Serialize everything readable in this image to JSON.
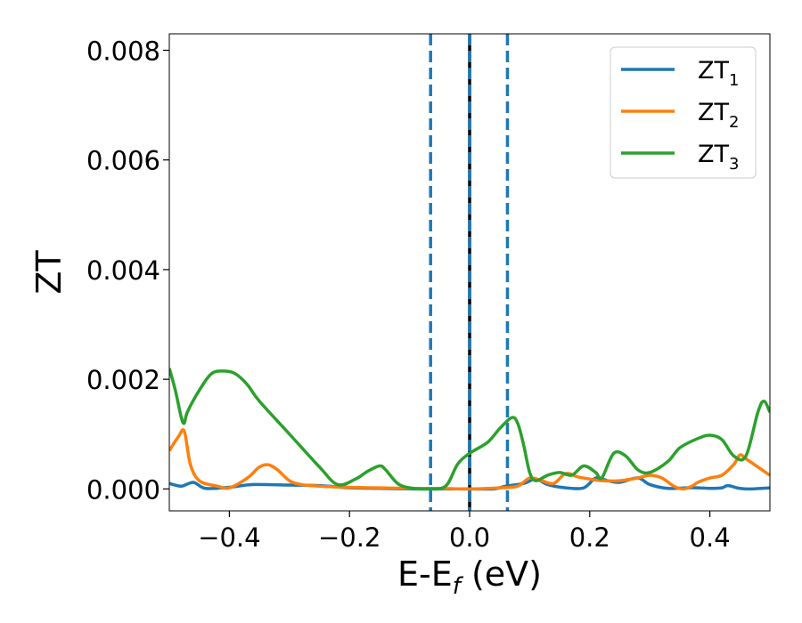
{
  "chart_data": {
    "type": "line",
    "xlabel": "E-E",
    "xlabel_sub": "f",
    "xlabel_unit": " (eV)",
    "ylabel": "ZT",
    "xlim": [
      -0.5,
      0.5
    ],
    "ylim": [
      -0.0004,
      0.0083
    ],
    "xticks": [
      -0.4,
      -0.2,
      0.0,
      0.2,
      0.4
    ],
    "xtick_labels": [
      "−0.4",
      "−0.2",
      "0.0",
      "0.2",
      "0.4"
    ],
    "yticks": [
      0.0,
      0.002,
      0.004,
      0.006,
      0.008
    ],
    "ytick_labels": [
      "0.000",
      "0.002",
      "0.004",
      "0.006",
      "0.008"
    ],
    "legend_position": "top-right",
    "vlines": [
      {
        "x": -0.065,
        "style": "dashed",
        "color": "#1f77b4"
      },
      {
        "x": 0.0,
        "style": "solid",
        "color": "#000000"
      },
      {
        "x": 0.0,
        "style": "dashed",
        "color": "#1f77b4"
      },
      {
        "x": 0.063,
        "style": "dashed",
        "color": "#1f77b4"
      }
    ],
    "series": [
      {
        "name": "ZT",
        "sub": "1",
        "color": "#1f77b4",
        "points": [
          [
            -0.5,
            0.0001
          ],
          [
            -0.48,
            5e-05
          ],
          [
            -0.46,
            0.00012
          ],
          [
            -0.44,
            1e-05
          ],
          [
            -0.4,
            3e-05
          ],
          [
            -0.36,
            8e-05
          ],
          [
            -0.3,
            7e-05
          ],
          [
            -0.25,
            6e-05
          ],
          [
            -0.2,
            2e-05
          ],
          [
            -0.15,
            1e-05
          ],
          [
            -0.1,
            0.0
          ],
          [
            -0.05,
            0.0
          ],
          [
            0.0,
            0.0
          ],
          [
            0.04,
            0.0
          ],
          [
            0.06,
            5e-05
          ],
          [
            0.09,
            0.0001
          ],
          [
            0.11,
            0.00018
          ],
          [
            0.13,
            8e-05
          ],
          [
            0.16,
            2e-05
          ],
          [
            0.19,
            2e-05
          ],
          [
            0.21,
            0.0002
          ],
          [
            0.23,
            0.00015
          ],
          [
            0.25,
            0.00012
          ],
          [
            0.28,
            0.0002
          ],
          [
            0.3,
            8e-05
          ],
          [
            0.33,
            1e-05
          ],
          [
            0.36,
            2e-05
          ],
          [
            0.38,
            2e-05
          ],
          [
            0.4,
            1e-05
          ],
          [
            0.42,
            2e-05
          ],
          [
            0.43,
            6e-05
          ],
          [
            0.45,
            1e-05
          ],
          [
            0.47,
            0.0
          ],
          [
            0.5,
            2e-05
          ]
        ]
      },
      {
        "name": "ZT",
        "sub": "2",
        "color": "#ff7f0e",
        "points": [
          [
            -0.5,
            0.0007
          ],
          [
            -0.485,
            0.00095
          ],
          [
            -0.475,
            0.00105
          ],
          [
            -0.465,
            0.00045
          ],
          [
            -0.45,
            0.00015
          ],
          [
            -0.42,
            5e-05
          ],
          [
            -0.4,
            2e-05
          ],
          [
            -0.37,
            0.0002
          ],
          [
            -0.35,
            0.0004
          ],
          [
            -0.335,
            0.00044
          ],
          [
            -0.32,
            0.00035
          ],
          [
            -0.3,
            0.00015
          ],
          [
            -0.28,
            8e-05
          ],
          [
            -0.25,
            5e-05
          ],
          [
            -0.2,
            3e-05
          ],
          [
            -0.15,
            2e-05
          ],
          [
            -0.1,
            1e-05
          ],
          [
            -0.05,
            1e-05
          ],
          [
            0.0,
            0.0
          ],
          [
            0.05,
            2e-05
          ],
          [
            0.08,
            5e-05
          ],
          [
            0.1,
            0.0002
          ],
          [
            0.12,
            0.00015
          ],
          [
            0.14,
            0.0001
          ],
          [
            0.16,
            0.00028
          ],
          [
            0.18,
            0.00022
          ],
          [
            0.2,
            0.00018
          ],
          [
            0.22,
            0.00015
          ],
          [
            0.25,
            0.00015
          ],
          [
            0.28,
            0.0002
          ],
          [
            0.3,
            0.00025
          ],
          [
            0.32,
            0.0002
          ],
          [
            0.34,
            5e-05
          ],
          [
            0.355,
            0.0
          ],
          [
            0.37,
            5e-05
          ],
          [
            0.38,
            0.00012
          ],
          [
            0.4,
            0.0002
          ],
          [
            0.42,
            0.00025
          ],
          [
            0.44,
            0.00045
          ],
          [
            0.45,
            0.00062
          ],
          [
            0.46,
            0.00055
          ],
          [
            0.48,
            0.0004
          ],
          [
            0.5,
            0.00025
          ]
        ]
      },
      {
        "name": "ZT",
        "sub": "3",
        "color": "#2ca02c",
        "points": [
          [
            -0.5,
            0.0022
          ],
          [
            -0.49,
            0.0018
          ],
          [
            -0.48,
            0.0013
          ],
          [
            -0.475,
            0.0012
          ],
          [
            -0.47,
            0.0014
          ],
          [
            -0.45,
            0.0018
          ],
          [
            -0.43,
            0.0021
          ],
          [
            -0.41,
            0.00215
          ],
          [
            -0.39,
            0.0021
          ],
          [
            -0.37,
            0.0019
          ],
          [
            -0.35,
            0.0016
          ],
          [
            -0.3,
            0.001
          ],
          [
            -0.25,
            0.0004
          ],
          [
            -0.22,
            8e-05
          ],
          [
            -0.19,
            0.00018
          ],
          [
            -0.17,
            0.00032
          ],
          [
            -0.15,
            0.00042
          ],
          [
            -0.14,
            0.00035
          ],
          [
            -0.12,
            0.0001
          ],
          [
            -0.1,
            2e-05
          ],
          [
            -0.07,
            0.0
          ],
          [
            -0.04,
            5e-05
          ],
          [
            -0.02,
            0.00045
          ],
          [
            0.0,
            0.00065
          ],
          [
            0.03,
            0.00085
          ],
          [
            0.05,
            0.0011
          ],
          [
            0.07,
            0.0013
          ],
          [
            0.08,
            0.0012
          ],
          [
            0.09,
            0.0008
          ],
          [
            0.1,
            0.0003
          ],
          [
            0.11,
            0.00015
          ],
          [
            0.13,
            0.00025
          ],
          [
            0.15,
            0.0003
          ],
          [
            0.17,
            0.00025
          ],
          [
            0.19,
            0.00042
          ],
          [
            0.21,
            0.0003
          ],
          [
            0.22,
            0.0002
          ],
          [
            0.24,
            0.00065
          ],
          [
            0.26,
            0.0006
          ],
          [
            0.28,
            0.00035
          ],
          [
            0.3,
            0.0003
          ],
          [
            0.33,
            0.0005
          ],
          [
            0.35,
            0.00075
          ],
          [
            0.38,
            0.00092
          ],
          [
            0.4,
            0.00098
          ],
          [
            0.42,
            0.0009
          ],
          [
            0.44,
            0.0006
          ],
          [
            0.46,
            0.0006
          ],
          [
            0.48,
            0.0014
          ],
          [
            0.49,
            0.0016
          ],
          [
            0.5,
            0.0014
          ]
        ]
      }
    ]
  }
}
